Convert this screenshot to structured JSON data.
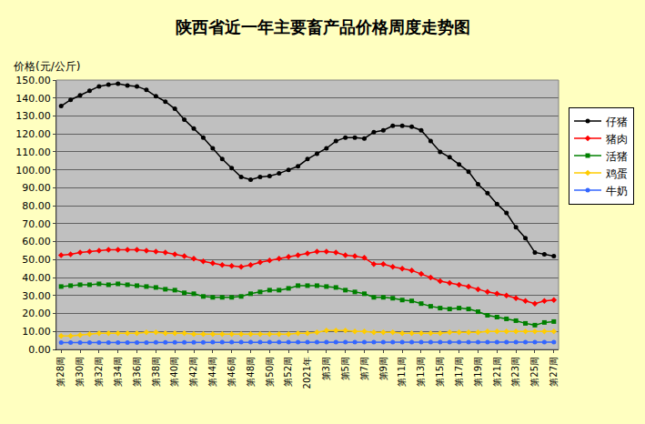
{
  "chart_data": {
    "type": "line",
    "title": "陕西省近一年主要畜产品价格周度走势图",
    "y_label": "价格(元/公斤)",
    "categories": [
      "第28周",
      null,
      "第30周",
      null,
      "第32周",
      null,
      "第34周",
      null,
      "第36周",
      null,
      "第38周",
      null,
      "第40周",
      null,
      "第42周",
      null,
      "第44周",
      null,
      "第46周",
      null,
      "第48周",
      null,
      "第50周",
      null,
      "第52周",
      null,
      "2021年",
      null,
      "第3周",
      null,
      "第5周",
      null,
      "第7周",
      null,
      "第9周",
      null,
      "第11周",
      null,
      "第13周",
      null,
      "第15周",
      null,
      "第17周",
      null,
      "第19周",
      null,
      "第21周",
      null,
      "第23周",
      null,
      "第25周",
      null,
      "第27周"
    ],
    "series": [
      {
        "name": "仔猪",
        "color": "#000000",
        "marker": "circle",
        "values": [
          135.5,
          139,
          141.5,
          144,
          146.5,
          147.5,
          148,
          147,
          146.5,
          144.5,
          141,
          138,
          134,
          128,
          123,
          118,
          112,
          106,
          101,
          96,
          94.5,
          96,
          96.5,
          98,
          100,
          102,
          106,
          109,
          112,
          116,
          118,
          118,
          117.5,
          121,
          122,
          124.5,
          124.5,
          124,
          122,
          116,
          110,
          107,
          103,
          99,
          92,
          87,
          81,
          76,
          68,
          62,
          54,
          53,
          52
        ]
      },
      {
        "name": "猪肉",
        "color": "#FF0000",
        "marker": "diamond",
        "values": [
          52.5,
          53,
          54,
          54.5,
          55,
          55.5,
          55.5,
          55.5,
          55.5,
          55,
          54.5,
          54,
          53,
          52,
          50.5,
          49,
          48,
          47,
          46.5,
          46,
          47,
          48.5,
          49.5,
          50.5,
          51.5,
          52.5,
          53.5,
          54.5,
          54.5,
          54,
          52.5,
          52,
          51,
          47.5,
          47.5,
          46,
          45,
          44,
          42,
          40,
          38,
          37,
          36,
          35,
          33.5,
          32,
          31,
          30,
          28.5,
          27,
          25.5,
          27,
          27.5
        ]
      },
      {
        "name": "活猪",
        "color": "#008000",
        "marker": "square",
        "values": [
          35,
          35.5,
          36,
          36,
          36.5,
          36,
          36.5,
          36,
          35.5,
          35,
          34.5,
          33.5,
          33,
          31.5,
          31,
          29.5,
          29,
          29,
          29,
          29.5,
          31,
          32,
          33,
          33,
          34,
          35.5,
          35.5,
          35.5,
          35,
          34.5,
          33,
          32,
          31,
          29,
          29,
          28.5,
          27.5,
          27,
          25.5,
          24,
          23,
          22.5,
          23,
          22.5,
          21,
          19,
          18,
          17,
          16,
          14.5,
          13.5,
          15,
          15.5
        ]
      },
      {
        "name": "鸡蛋",
        "color": "#FFCC00",
        "marker": "diamond",
        "values": [
          7.5,
          7.5,
          8,
          8.5,
          9,
          9,
          9,
          9,
          9,
          9.5,
          9.5,
          9,
          9,
          9,
          8.5,
          8.5,
          8.5,
          8.5,
          8.5,
          8.5,
          8.5,
          8.5,
          8.5,
          8.5,
          8.5,
          9,
          9,
          9.5,
          10.5,
          10.5,
          10.5,
          10,
          10,
          9.5,
          9.5,
          9.5,
          9,
          9,
          9,
          9,
          9,
          9.5,
          9.5,
          9.5,
          9.5,
          10,
          10,
          10,
          10,
          10,
          10,
          10,
          10
        ]
      },
      {
        "name": "牛奶",
        "color": "#3366FF",
        "marker": "circle",
        "values": [
          3.8,
          3.8,
          3.8,
          3.8,
          3.8,
          3.8,
          3.8,
          3.8,
          3.8,
          3.8,
          3.9,
          3.9,
          3.9,
          3.9,
          3.9,
          3.9,
          4,
          4,
          4,
          4,
          4,
          4,
          4,
          4,
          4,
          4,
          4,
          4,
          4,
          4,
          4,
          4,
          4,
          4,
          4,
          4,
          4,
          4,
          4,
          4,
          4.1,
          4.1,
          4.1,
          4.1,
          4.1,
          4.1,
          4.1,
          4.1,
          4.1,
          4.1,
          4.1,
          4.1,
          4.1
        ]
      }
    ],
    "ylim": [
      0,
      150
    ],
    "yticks": [
      {
        "value": 0,
        "label": "0.00"
      },
      {
        "value": 10,
        "label": "10.00"
      },
      {
        "value": 20,
        "label": "20.00"
      },
      {
        "value": 30,
        "label": "30.00"
      },
      {
        "value": 40,
        "label": "40.00"
      },
      {
        "value": 50,
        "label": "50.00"
      },
      {
        "value": 60,
        "label": "60.00"
      },
      {
        "value": 70,
        "label": "70.00"
      },
      {
        "value": 80,
        "label": "80.00"
      },
      {
        "value": 90,
        "label": "90.00"
      },
      {
        "value": 100,
        "label": "100.00"
      },
      {
        "value": 110,
        "label": "110.00"
      },
      {
        "value": 120,
        "label": "120.00"
      },
      {
        "value": 130,
        "label": "130.00"
      },
      {
        "value": 140,
        "label": "140.00"
      },
      {
        "value": 150,
        "label": "150.00"
      }
    ],
    "grid": true,
    "legend": "right"
  }
}
